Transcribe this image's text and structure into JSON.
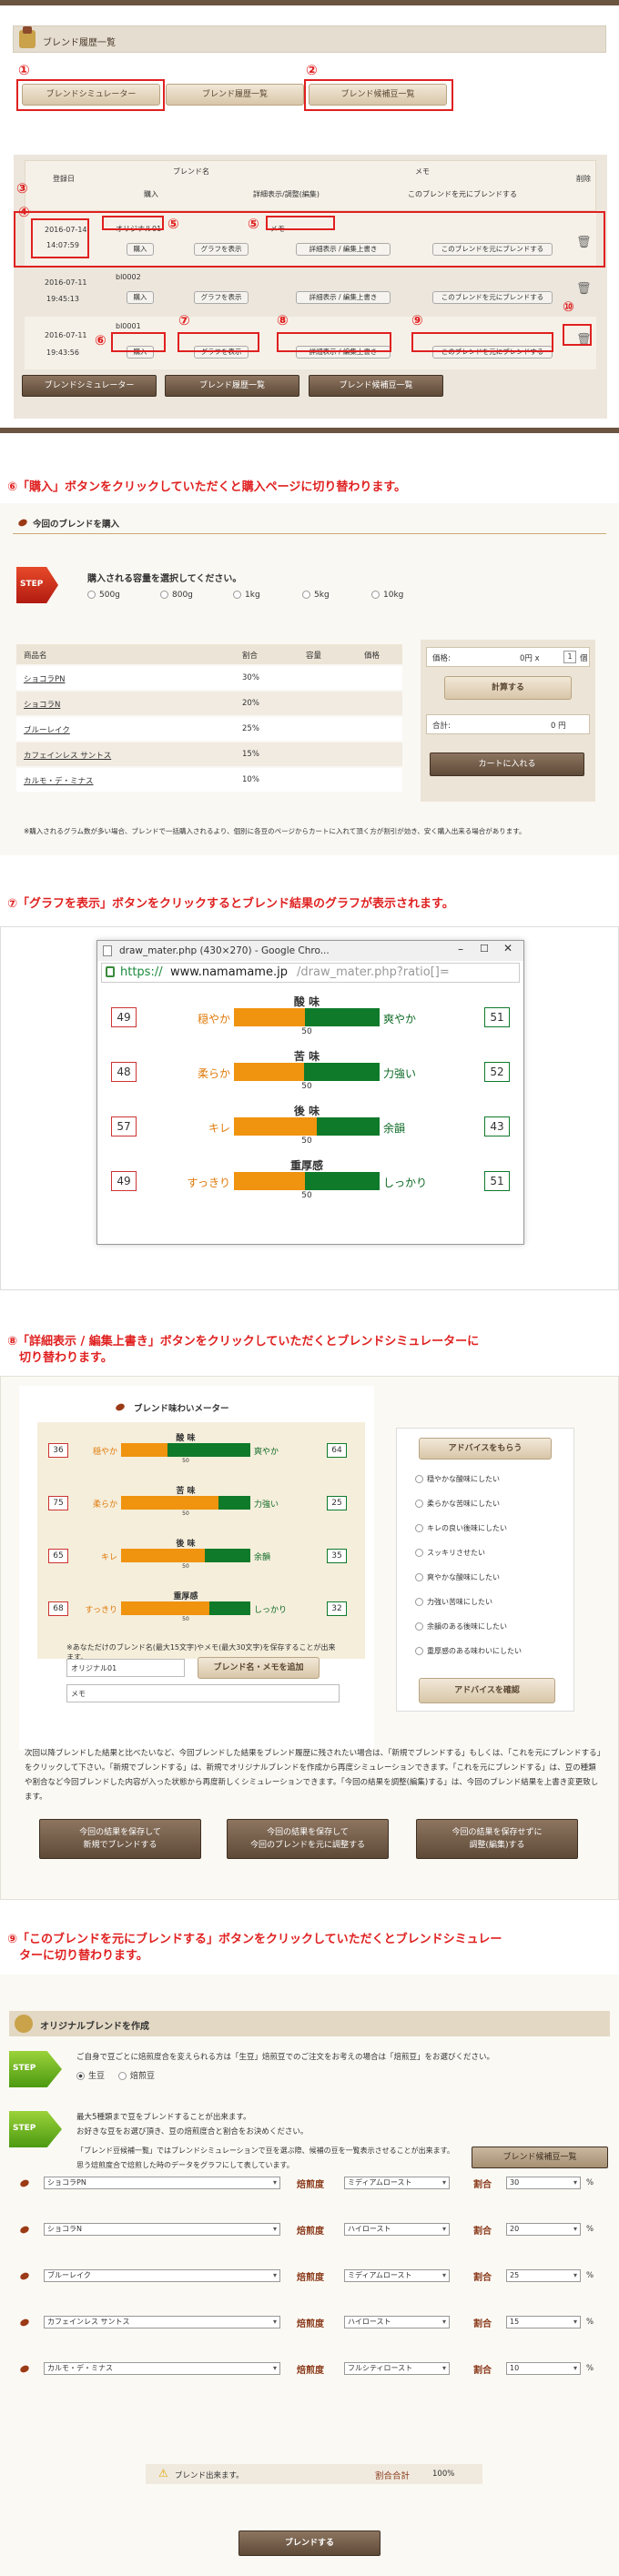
{
  "s1": {
    "title": "ブレンド履歴一覧",
    "tabs": [
      "ブレンドシミュレーター",
      "ブレンド履歴一覧",
      "ブレンド候補豆一覧"
    ],
    "headers": {
      "date": "登録日",
      "blend_name": "ブレンド名",
      "buy": "購入",
      "detail": "詳細表示/調整(編集)",
      "memo": "メモ",
      "use": "このブレンドを元にブレンドする",
      "delete": "削除"
    },
    "rows": [
      {
        "date": "2016-07-14",
        "time": "14:07:59",
        "name": "オリジナル01",
        "memo": "メモ"
      },
      {
        "date": "2016-07-11",
        "time": "19:45:13",
        "name": "bl0002",
        "memo": ""
      },
      {
        "date": "2016-07-11",
        "time": "19:43:56",
        "name": "bl0001",
        "memo": ""
      }
    ],
    "buy_label": "購入",
    "graph_label": "グラフを表示",
    "detail_label": "詳細表示 / 編集上書き",
    "use_label": "このブレンドを元にブレンドする",
    "markers": [
      "①",
      "②",
      "③",
      "④",
      "⑤",
      "⑤",
      "⑥",
      "⑦",
      "⑧",
      "⑨",
      "⑩"
    ]
  },
  "cap6": "⑥「購入」ボタンをクリックしていただくと購入ページに切り替わります。",
  "s2": {
    "title": "今回のブレンドを購入",
    "step": "STEP",
    "prompt": "購入される容量を選択してください。",
    "sizes": [
      "500g",
      "800g",
      "1kg",
      "5kg",
      "10kg"
    ],
    "headers": [
      "商品名",
      "割合",
      "容量",
      "価格"
    ],
    "items": [
      {
        "name": "ショコラPN",
        "ratio": "30%"
      },
      {
        "name": "ショコラN",
        "ratio": "20%"
      },
      {
        "name": "ブルーレイク",
        "ratio": "25%"
      },
      {
        "name": "カフェインレス サントス",
        "ratio": "15%"
      },
      {
        "name": "カルモ・デ・ミナス",
        "ratio": "10%"
      }
    ],
    "price_label": "価格:",
    "price_value": "0円 x",
    "qty": "1",
    "qty_unit": "個",
    "calc": "計算する",
    "total_label": "合計:",
    "total_value": "0 円",
    "cart": "カートに入れる",
    "note": "※購入されるグラム数が多い場合、ブレンドで一括購入されるより、個別に各豆のページからカートに入れて頂く方が割引が効き、安く購入出来る場合があります。"
  },
  "cap7": "⑦「グラフを表示」ボタンをクリックするとブレンド結果のグラフが表示されます。",
  "s3": {
    "window_title": "draw_mater.php (430×270) - Google Chro...",
    "url_scheme": "https://",
    "url_host": "www.namamame.jp",
    "url_path": "/draw_mater.php?ratio[]=",
    "meters": [
      {
        "title": "酸 味",
        "left": "穏やか",
        "right": "爽やか",
        "lv": "49",
        "rv": "51",
        "mid": "50"
      },
      {
        "title": "苦 味",
        "left": "柔らか",
        "right": "力強い",
        "lv": "48",
        "rv": "52",
        "mid": "50"
      },
      {
        "title": "後 味",
        "left": "キレ",
        "right": "余韻",
        "lv": "57",
        "rv": "43",
        "mid": "50"
      },
      {
        "title": "重厚感",
        "left": "すっきり",
        "right": "しっかり",
        "lv": "49",
        "rv": "51",
        "mid": "50"
      }
    ]
  },
  "cap8a": "⑧「詳細表示 / 編集上書き」ボタンをクリックしていただくとブレンドシミュレーターに",
  "cap8b": "　切り替わります。",
  "s4": {
    "title": "ブレンド味わいメーター",
    "meters": [
      {
        "title": "酸 味",
        "left": "穏やか",
        "right": "爽やか",
        "lv": "36",
        "rv": "64",
        "mid": "50"
      },
      {
        "title": "苦 味",
        "left": "柔らか",
        "right": "力強い",
        "lv": "75",
        "rv": "25",
        "mid": "50"
      },
      {
        "title": "後 味",
        "left": "キレ",
        "right": "余韻",
        "lv": "65",
        "rv": "35",
        "mid": "50"
      },
      {
        "title": "重厚感",
        "left": "すっきり",
        "right": "しっかり",
        "lv": "68",
        "rv": "32",
        "mid": "50"
      }
    ],
    "note": "※あなただけのブレンド名(最大15文字)やメモ(最大30文字)を保存することが出来ます。",
    "name_value": "オリジナル01",
    "memo_value": "メモ",
    "add_btn": "ブレンド名・メモを追加",
    "advice_title": "アドバイスをもらう",
    "advice": [
      "穏やかな酸味にしたい",
      "柔らかな苦味にしたい",
      "キレの良い後味にしたい",
      "スッキリさせたい",
      "爽やかな酸味にしたい",
      "力強い苦味にしたい",
      "余韻のある後味にしたい",
      "重厚感のある味わいにしたい"
    ],
    "advice_btn": "アドバイスを確認",
    "desc": "次回以降ブレンドした結果と比べたいなど、今回ブレンドした結果をブレンド履歴に残されたい場合は、「新規でブレンドする」もしくは、「これを元にブレンドする」をクリックして下さい。「新規でブレンドする」は、新規でオリジナルブレンドを作成から再度シミュレーションできます。「これを元にブレンドする」は、豆の種類や割合など今回ブレンドした内容が入った状態から再度新しくシミュレーションできます。「今回の結果を調整(編集)する」は、今回のブレンド結果を上書き変更致します。",
    "btns": [
      "今回の結果を保存して\n新規でブレンドする",
      "今回の結果を保存して\n今回のブレンドを元に調整する",
      "今回の結果を保存せずに\n調整(編集)する"
    ]
  },
  "cap9a": "⑨「このブレンドを元にブレンドする」ボタンをクリックしていただくとブレンドシミュレー",
  "cap9b": "　ターに切り替わります。",
  "s5": {
    "title": "オリジナルブレンドを作成",
    "step1_text": "ご自身で豆ごとに焙煎度合を変えられる方は「生豆」焙煎豆でのご注文をお考えの場合は「焙煎豆」をお選びください。",
    "opt1": "生豆",
    "opt2": "焙煎豆",
    "step2_line1": "最大5種類まで豆をブレンドすることが出来ます。",
    "step2_line2": "お好きな豆をお選び頂き、豆の焙煎度合と割合をお決めください。",
    "step2_line3": "「ブレンド豆候補一覧」ではブレンドシミュレーションで豆を選ぶ際、候補の豆を一覧表示させることが出来ます。",
    "step2_line4": "思う焙煎度合で焙煎した時のデータをグラフにして表しています。",
    "cand_btn": "ブレンド候補豆一覧",
    "roast_label": "焙煎度",
    "ratio_label": "割合",
    "pct": "%",
    "rows": [
      {
        "bean": "ショコラPN",
        "roast": "ミディアムロースト",
        "ratio": "30"
      },
      {
        "bean": "ショコラN",
        "roast": "ハイロースト",
        "ratio": "20"
      },
      {
        "bean": "ブルーレイク",
        "roast": "ミディアムロースト",
        "ratio": "25"
      },
      {
        "bean": "カフェインレス サントス",
        "roast": "ハイロースト",
        "ratio": "15"
      },
      {
        "bean": "カルモ・デ・ミナス",
        "roast": "フルシティロースト",
        "ratio": "10"
      }
    ],
    "status": "ブレンド出来ます。",
    "sum_label": "割合合計",
    "sum_value": "100%",
    "submit": "ブレンドする"
  },
  "colors": {
    "red": "#e02020",
    "brown": "#6b5440",
    "orange": "#f0930f",
    "green": "#0e7a2a"
  }
}
